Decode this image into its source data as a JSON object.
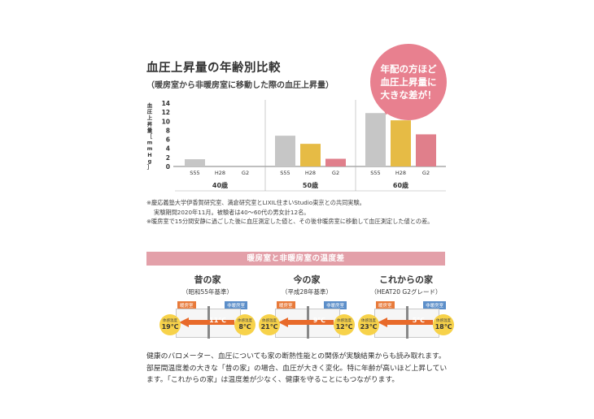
{
  "title": "血圧上昇量の年齢別比較",
  "subtitle": "（暖房室から非暖房室に移動した際の血圧上昇量）",
  "badge": {
    "line1": "年配の方ほど",
    "line2": "血圧上昇量に",
    "line3": "大きな差が！"
  },
  "chart_data": {
    "type": "bar",
    "ylabel": "血圧上昇量［mmHg］",
    "ylim": [
      0,
      14
    ],
    "yticks": [
      "0",
      "2",
      "4",
      "6",
      "8",
      "10",
      "12",
      "14"
    ],
    "groups": [
      {
        "label": "40歳",
        "categories": [
          "S55",
          "H28",
          "G2"
        ],
        "values": [
          1.6,
          0,
          0
        ]
      },
      {
        "label": "50歳",
        "categories": [
          "S55",
          "H28",
          "G2"
        ],
        "values": [
          6.8,
          5.0,
          1.7
        ]
      },
      {
        "label": "60歳",
        "categories": [
          "S55",
          "H28",
          "G2"
        ],
        "values": [
          11.8,
          10.2,
          7.1
        ]
      }
    ],
    "colors": {
      "S55": "#c6c6c6",
      "H28": "#e6bb45",
      "G2": "#e07f8b"
    },
    "grid": false
  },
  "notes": {
    "n1": "※慶応義塾大学伊香賀研究室、満倉研究室とLIXIL住まいStudio東京との共同実験。",
    "n2": "実験期間2020年11月。被験者は40～60代の男女計12名。",
    "n3": "※暖房室で15分間安静に過ごした後に血圧測定した値と、その後非暖房室に移動して血圧測定した値との差。"
  },
  "section_heading": "暖房室と非暖房室の温度差",
  "diagram_labels": {
    "warm": "暖房室",
    "cold": "非暖房室",
    "felt": "体感温度",
    "diff": "温度差"
  },
  "houses": [
    {
      "name": "昔の家",
      "sub": "（昭和55年基準）",
      "warm": "19℃",
      "diff": "11℃",
      "cold": "8℃"
    },
    {
      "name": "今の家",
      "sub": "（平成28年基準）",
      "warm": "21℃",
      "diff": "9℃",
      "cold": "12℃"
    },
    {
      "name": "これからの家",
      "sub": "（HEAT20 G2グレード）",
      "warm": "23℃",
      "diff": "5℃",
      "cold": "18℃"
    }
  ],
  "footer": "健康のバロメーター、血圧についても家の断熱性能との関係が実験結果からも読み取れます。部屋間温度差の大きな「昔の家」の場合、血圧が大きく変化。特に年齢が高いほど上昇しています。「これからの家」は温度差が少なく、健康を守ることにもつながります。"
}
